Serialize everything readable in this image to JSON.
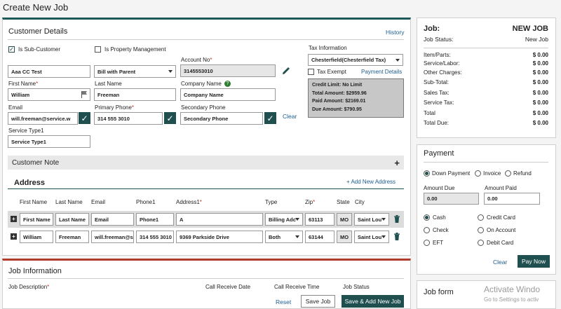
{
  "page_title": "Create New Job",
  "customer_details": {
    "title": "Customer Details",
    "history_link": "History",
    "is_sub_customer_label": "Is Sub-Customer",
    "is_property_mgmt_label": "Is Property Management",
    "account_no_label": "Account No",
    "account_no_value": "3145553010",
    "name_value": "Aaa  CC Test",
    "bill_select_value": "Bill with Parent",
    "first_name_label": "First Name",
    "first_name_value": "William",
    "last_name_label": "Last Name",
    "last_name_value": "Freeman",
    "company_name_label": "Company Name",
    "company_name_value": "Company Name",
    "email_label": "Email",
    "email_value": "will.freeman@service.w",
    "primary_phone_label": "Primary Phone",
    "primary_phone_value": "314 555 3010",
    "secondary_phone_label": "Secondary Phone",
    "secondary_phone_value": "Secondary Phone",
    "clear_link": "Clear",
    "service_type_label": "Service Type1",
    "service_type_value": "Service Type1",
    "tax_info_label": "Tax Information",
    "tax_select_value": "Chesterfield(Chesterfield Tax)",
    "tax_exempt_label": "Tax Exempt",
    "payment_details_link": "Payment Details",
    "credit": {
      "limit_label": "Credit Limit:",
      "limit_value": "No Limit",
      "total_label": "Total Amount:",
      "total_value": "$2959.96",
      "paid_label": "Paid Amount:",
      "paid_value": "$2169.01",
      "due_label": "Due Amount:",
      "due_value": "$790.95"
    },
    "customer_note_label": "Customer Note",
    "plus_symbol": "+"
  },
  "address": {
    "title": "Address",
    "add_link": "+ Add New Address",
    "columns": [
      "First Name",
      "Last Name",
      "Email",
      "Phone1",
      "Address1",
      "Type",
      "Zip",
      "State",
      "City"
    ],
    "filter_row": {
      "first": "First Name",
      "last": "Last Name",
      "email": "Email",
      "phone": "Phone1",
      "address": "A",
      "type": "Billing Adc",
      "zip": "63113",
      "state": "MO",
      "city": "Saint Lou"
    },
    "data_row": {
      "first": "William",
      "last": "Freeman",
      "email": "will.freeman@s",
      "phone": "314 555 3010",
      "address": "9369 Parkside Drive",
      "type": "Both",
      "zip": "63144",
      "state": "MO",
      "city": "Saint Lou"
    }
  },
  "job_info": {
    "title": "Job Information",
    "job_description_label": "Job Description",
    "call_receive_date_label": "Call Receive Date",
    "call_receive_time_label": "Call Receive Time",
    "job_status_label": "Job Status",
    "reset_label": "Reset",
    "save_job_label": "Save Job",
    "save_add_label": "Save & Add New Job"
  },
  "summary": {
    "job_label": "Job:",
    "job_value": "NEW JOB",
    "status_label": "Job Status:",
    "status_value": "New Job",
    "rows": [
      {
        "label": "Item/Parts:",
        "value": "$ 0.00"
      },
      {
        "label": "Service/Labor:",
        "value": "$ 0.00"
      },
      {
        "label": "Other Charges:",
        "value": "$ 0.00"
      },
      {
        "label": "Sub-Total:",
        "value": "$ 0.00"
      },
      {
        "label": "Sales Tax:",
        "value": "$ 0.00"
      },
      {
        "label": "Service Tax:",
        "value": "$ 0.00"
      },
      {
        "label": "Total",
        "value": "$ 0.00"
      },
      {
        "label": "Total Due:",
        "value": "$ 0.00"
      }
    ]
  },
  "payment": {
    "title": "Payment",
    "down_payment": "Down Payment",
    "invoice": "Invoice",
    "refund": "Refund",
    "amount_due_label": "Amount Due",
    "amount_due_value": "0.00",
    "amount_paid_label": "Amount Paid",
    "amount_paid_value": "0.00",
    "cash": "Cash",
    "credit_card": "Credit Card",
    "check": "Check",
    "on_account": "On Account",
    "eft": "EFT",
    "debit_card": "Debit Card",
    "clear_label": "Clear",
    "pay_now_label": "Pay Now"
  },
  "job_form_title": "Job form",
  "watermark": {
    "line1": "Activate Windo",
    "line2": "Go to Settings to activ"
  }
}
